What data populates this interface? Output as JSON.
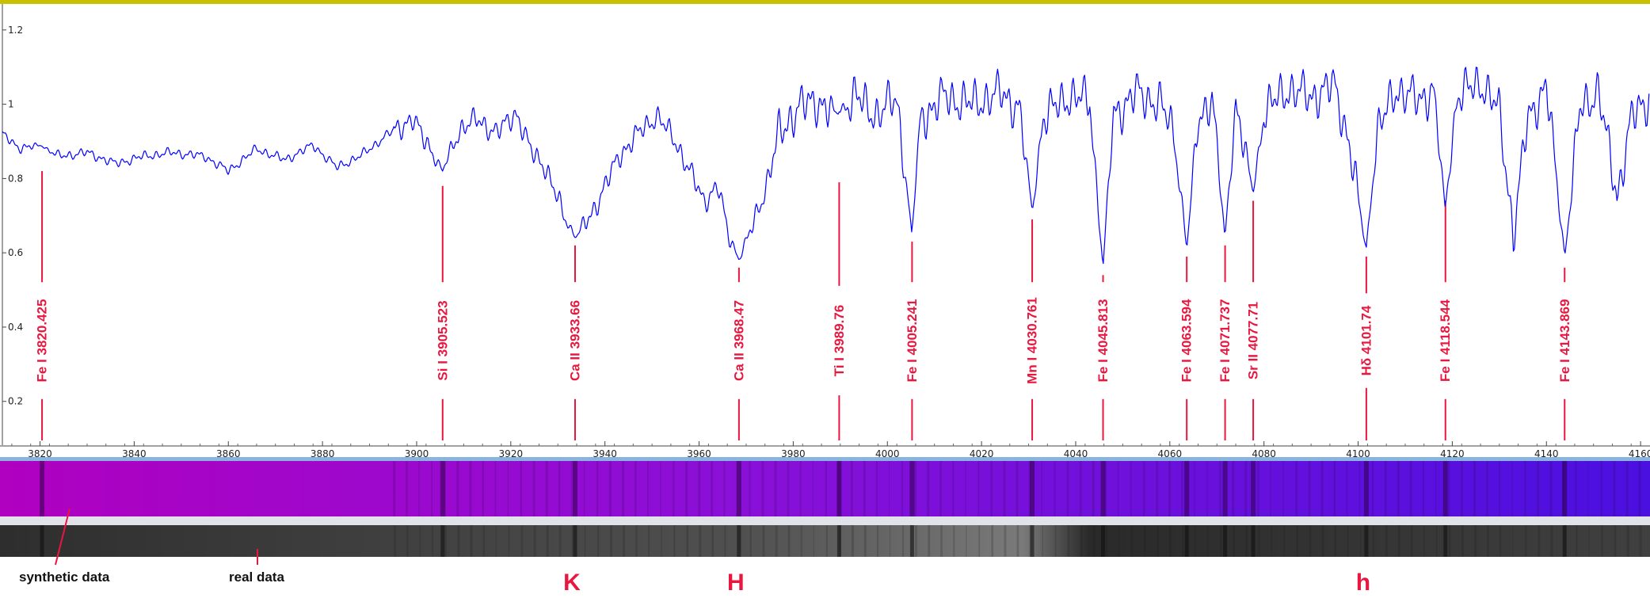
{
  "chart_data": {
    "type": "line",
    "xlim": [
      3812,
      4162
    ],
    "ylim": [
      0.08,
      1.27
    ],
    "x_ticks": [
      3820,
      3840,
      3860,
      3880,
      3900,
      3920,
      3940,
      3960,
      3980,
      4000,
      4020,
      4040,
      4060,
      4080,
      4100,
      4120,
      4140,
      4160
    ],
    "y_ticks": [
      0.2,
      0.4,
      0.6,
      0.8,
      1,
      1.2
    ],
    "y_tick_labels": [
      "0.2",
      "0.4",
      "0.6",
      "0.8",
      "1",
      "1.2"
    ],
    "grid": false,
    "series_color": "#0000ff",
    "anchors": [
      [
        3812,
        0.92
      ],
      [
        3816,
        0.88
      ],
      [
        3820,
        0.89
      ],
      [
        3824,
        0.86
      ],
      [
        3830,
        0.87
      ],
      [
        3836,
        0.84
      ],
      [
        3842,
        0.86
      ],
      [
        3848,
        0.87
      ],
      [
        3855,
        0.86
      ],
      [
        3860,
        0.82
      ],
      [
        3866,
        0.88
      ],
      [
        3872,
        0.85
      ],
      [
        3878,
        0.89
      ],
      [
        3883,
        0.83
      ],
      [
        3888,
        0.86
      ],
      [
        3894,
        0.92
      ],
      [
        3899,
        0.96
      ],
      [
        3903,
        0.88
      ],
      [
        3905.5,
        0.82
      ],
      [
        3909,
        0.93
      ],
      [
        3913,
        0.96
      ],
      [
        3917,
        0.92
      ],
      [
        3921,
        0.98
      ],
      [
        3924,
        0.88
      ],
      [
        3927,
        0.84
      ],
      [
        3930,
        0.74
      ],
      [
        3933.7,
        0.64
      ],
      [
        3937,
        0.7
      ],
      [
        3940,
        0.78
      ],
      [
        3943,
        0.86
      ],
      [
        3947,
        0.92
      ],
      [
        3951,
        0.97
      ],
      [
        3955,
        0.9
      ],
      [
        3958,
        0.82
      ],
      [
        3961,
        0.74
      ],
      [
        3964,
        0.78
      ],
      [
        3966,
        0.66
      ],
      [
        3968.5,
        0.58
      ],
      [
        3971,
        0.66
      ],
      [
        3974,
        0.77
      ],
      [
        3977,
        0.92
      ],
      [
        3981,
        0.99
      ],
      [
        3985,
        1.01
      ],
      [
        3989,
        0.97
      ],
      [
        3993,
        1.02
      ],
      [
        3998,
        0.97
      ],
      [
        4002,
        1.02
      ],
      [
        4005.2,
        0.65
      ],
      [
        4007,
        0.96
      ],
      [
        4012,
        1.02
      ],
      [
        4018,
        1.0
      ],
      [
        4024,
        1.03
      ],
      [
        4028,
        0.99
      ],
      [
        4030.8,
        0.71
      ],
      [
        4033,
        0.96
      ],
      [
        4038,
        1.02
      ],
      [
        4043,
        1.01
      ],
      [
        4045.8,
        0.56
      ],
      [
        4048,
        0.97
      ],
      [
        4053,
        1.03
      ],
      [
        4058,
        1.0
      ],
      [
        4061,
        0.92
      ],
      [
        4063.6,
        0.61
      ],
      [
        4066,
        0.96
      ],
      [
        4069,
        1.02
      ],
      [
        4071.7,
        0.64
      ],
      [
        4074,
        1.0
      ],
      [
        4077.7,
        0.76
      ],
      [
        4080,
        0.98
      ],
      [
        4085,
        1.04
      ],
      [
        4090,
        1.02
      ],
      [
        4095,
        1.05
      ],
      [
        4098,
        0.9
      ],
      [
        4101.7,
        0.61
      ],
      [
        4104,
        0.92
      ],
      [
        4108,
        1.04
      ],
      [
        4113,
        1.01
      ],
      [
        4116,
        1.04
      ],
      [
        4118.5,
        0.72
      ],
      [
        4121,
        1.02
      ],
      [
        4126,
        1.06
      ],
      [
        4130,
        0.98
      ],
      [
        4133,
        0.65
      ],
      [
        4136,
        0.96
      ],
      [
        4140,
        1.05
      ],
      [
        4143.9,
        0.59
      ],
      [
        4147,
        0.98
      ],
      [
        4151,
        1.04
      ],
      [
        4155,
        0.75
      ],
      [
        4158,
        0.96
      ],
      [
        4162,
        1.02
      ]
    ],
    "spectral_lines": [
      {
        "label": "Fe I  3820.425",
        "x": 3820.425,
        "y": 0.82
      },
      {
        "label": "Si I  3905.523",
        "x": 3905.523,
        "y": 0.78
      },
      {
        "label": "Ca II  3933.66",
        "x": 3933.66,
        "y": 0.62
      },
      {
        "label": "Ca II  3968.47",
        "x": 3968.47,
        "y": 0.56
      },
      {
        "label": "Ti I  3989.76",
        "x": 3989.76,
        "y": 0.79
      },
      {
        "label": "Fe I  4005.241",
        "x": 4005.241,
        "y": 0.63
      },
      {
        "label": "Mn I  4030.761",
        "x": 4030.761,
        "y": 0.69
      },
      {
        "label": "Fe I  4045.813",
        "x": 4045.813,
        "y": 0.54
      },
      {
        "label": "Fe I  4063.594",
        "x": 4063.594,
        "y": 0.59
      },
      {
        "label": "Fe I  4071.737",
        "x": 4071.737,
        "y": 0.62
      },
      {
        "label": "Sr II  4077.71",
        "x": 4077.71,
        "y": 0.74
      },
      {
        "label": "Hδ  4101.74",
        "x": 4101.74,
        "y": 0.59
      },
      {
        "label": "Fe I  4118.544",
        "x": 4118.544,
        "y": 0.74
      },
      {
        "label": "Fe I  4143.869",
        "x": 4143.869,
        "y": 0.56
      }
    ],
    "spectrum_strips": [
      {
        "label": "synthetic data"
      },
      {
        "label": "real data"
      }
    ],
    "band_markers": [
      {
        "label": "K",
        "x": 3933.66
      },
      {
        "label": "H",
        "x": 3968.47
      },
      {
        "label": "h",
        "x": 4101.74
      }
    ],
    "strip_colors": {
      "synthetic_start": "#b000c0",
      "synthetic_end": "#4a10e0",
      "real": "#3a3a3a"
    }
  }
}
